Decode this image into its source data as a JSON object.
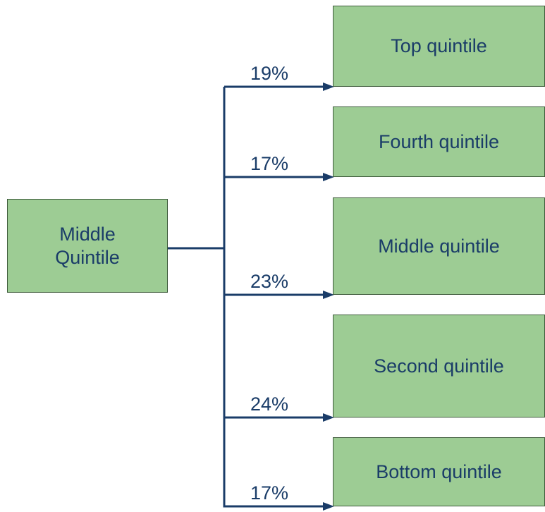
{
  "source": {
    "label": "Middle Quintile"
  },
  "targets": [
    {
      "label": "Top quintile",
      "edge_label": "19%"
    },
    {
      "label": "Fourth quintile",
      "edge_label": "17%"
    },
    {
      "label": "Middle quintile",
      "edge_label": "23%"
    },
    {
      "label": "Second quintile",
      "edge_label": "24%"
    },
    {
      "label": "Bottom quintile",
      "edge_label": "17%"
    }
  ]
}
